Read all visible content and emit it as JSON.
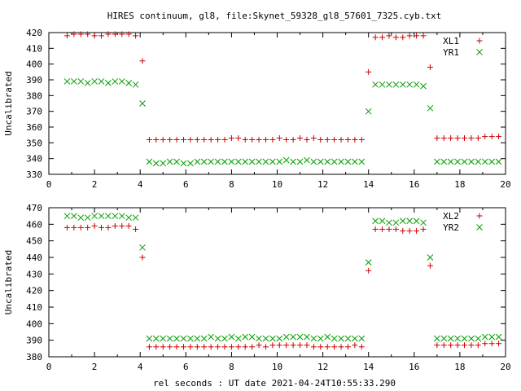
{
  "title": "HIRES continuum, gl8, file:Skynet_59328_gl8_57601_7325.cyb.txt",
  "xlabel": "rel seconds : UT date 2021-04-24T10:55:33.290",
  "colors": {
    "red": "#cc0000",
    "green": "#00a000"
  },
  "chart_data": [
    {
      "type": "scatter",
      "ylabel": "Uncalibrated",
      "xlim": [
        0,
        20
      ],
      "ylim": [
        330,
        420
      ],
      "xticks": [
        "0",
        "2",
        "4",
        "6",
        "8",
        "10",
        "12",
        "14",
        "16",
        "18",
        "20"
      ],
      "yticks": [
        "330",
        "340",
        "350",
        "360",
        "370",
        "380",
        "390",
        "400",
        "410",
        "420"
      ],
      "legend_position": "top-right",
      "series": [
        {
          "name": "XL1",
          "marker": "plus",
          "color": "#cc0000",
          "x": [
            0.8,
            1.1,
            1.4,
            1.7,
            2.0,
            2.3,
            2.6,
            2.9,
            3.2,
            3.5,
            3.8,
            4.1,
            4.4,
            4.7,
            5.0,
            5.3,
            5.6,
            5.9,
            6.2,
            6.5,
            6.8,
            7.1,
            7.4,
            7.7,
            8.0,
            8.3,
            8.6,
            8.9,
            9.2,
            9.5,
            9.8,
            10.1,
            10.4,
            10.7,
            11.0,
            11.3,
            11.6,
            11.9,
            12.2,
            12.5,
            12.8,
            13.1,
            13.4,
            13.7,
            14.0,
            14.3,
            14.6,
            14.9,
            15.2,
            15.5,
            15.8,
            16.1,
            16.4,
            16.7,
            17.0,
            17.3,
            17.6,
            17.9,
            18.2,
            18.5,
            18.8,
            19.1,
            19.4,
            19.7
          ],
          "y": [
            418,
            419,
            419,
            419,
            418,
            418,
            419,
            419,
            419,
            419,
            418,
            402,
            352,
            352,
            352,
            352,
            352,
            352,
            352,
            352,
            352,
            352,
            352,
            352,
            353,
            353,
            352,
            352,
            352,
            352,
            352,
            353,
            352,
            352,
            353,
            352,
            353,
            352,
            352,
            352,
            352,
            352,
            352,
            352,
            395,
            417,
            417,
            418,
            417,
            417,
            418,
            418,
            418,
            398,
            353,
            353,
            353,
            353,
            353,
            353,
            353,
            354,
            354,
            354
          ]
        },
        {
          "name": "YR1",
          "marker": "cross",
          "color": "#00a000",
          "x": [
            0.8,
            1.1,
            1.4,
            1.7,
            2.0,
            2.3,
            2.6,
            2.9,
            3.2,
            3.5,
            3.8,
            4.1,
            4.4,
            4.7,
            5.0,
            5.3,
            5.6,
            5.9,
            6.2,
            6.5,
            6.8,
            7.1,
            7.4,
            7.7,
            8.0,
            8.3,
            8.6,
            8.9,
            9.2,
            9.5,
            9.8,
            10.1,
            10.4,
            10.7,
            11.0,
            11.3,
            11.6,
            11.9,
            12.2,
            12.5,
            12.8,
            13.1,
            13.4,
            13.7,
            14.0,
            14.3,
            14.6,
            14.9,
            15.2,
            15.5,
            15.8,
            16.1,
            16.4,
            16.7,
            17.0,
            17.3,
            17.6,
            17.9,
            18.2,
            18.5,
            18.8,
            19.1,
            19.4,
            19.7
          ],
          "y": [
            389,
            389,
            389,
            388,
            389,
            389,
            388,
            389,
            389,
            388,
            387,
            375,
            338,
            337,
            337,
            338,
            338,
            337,
            337,
            338,
            338,
            338,
            338,
            338,
            338,
            338,
            338,
            338,
            338,
            338,
            338,
            338,
            339,
            338,
            338,
            339,
            338,
            338,
            338,
            338,
            338,
            338,
            338,
            338,
            370,
            387,
            387,
            387,
            387,
            387,
            387,
            387,
            386,
            372,
            338,
            338,
            338,
            338,
            338,
            338,
            338,
            338,
            338,
            338
          ]
        }
      ]
    },
    {
      "type": "scatter",
      "ylabel": "Uncalibrated",
      "xlim": [
        0,
        20
      ],
      "ylim": [
        380,
        470
      ],
      "xticks": [
        "0",
        "2",
        "4",
        "6",
        "8",
        "10",
        "12",
        "14",
        "16",
        "18",
        "20"
      ],
      "yticks": [
        "380",
        "390",
        "400",
        "410",
        "420",
        "430",
        "440",
        "450",
        "460",
        "470"
      ],
      "legend_position": "top-right",
      "series": [
        {
          "name": "XL2",
          "marker": "plus",
          "color": "#cc0000",
          "x": [
            0.8,
            1.1,
            1.4,
            1.7,
            2.0,
            2.3,
            2.6,
            2.9,
            3.2,
            3.5,
            3.8,
            4.1,
            4.4,
            4.7,
            5.0,
            5.3,
            5.6,
            5.9,
            6.2,
            6.5,
            6.8,
            7.1,
            7.4,
            7.7,
            8.0,
            8.3,
            8.6,
            8.9,
            9.2,
            9.5,
            9.8,
            10.1,
            10.4,
            10.7,
            11.0,
            11.3,
            11.6,
            11.9,
            12.2,
            12.5,
            12.8,
            13.1,
            13.4,
            13.7,
            14.0,
            14.3,
            14.6,
            14.9,
            15.2,
            15.5,
            15.8,
            16.1,
            16.4,
            16.7,
            17.0,
            17.3,
            17.6,
            17.9,
            18.2,
            18.5,
            18.8,
            19.1,
            19.4,
            19.7
          ],
          "y": [
            458,
            458,
            458,
            458,
            459,
            458,
            458,
            459,
            459,
            459,
            457,
            440,
            386,
            386,
            386,
            386,
            386,
            386,
            386,
            386,
            386,
            386,
            386,
            386,
            386,
            386,
            386,
            386,
            387,
            386,
            387,
            387,
            387,
            387,
            387,
            387,
            386,
            386,
            386,
            386,
            386,
            386,
            387,
            386,
            432,
            457,
            457,
            457,
            457,
            456,
            456,
            456,
            457,
            435,
            387,
            387,
            387,
            387,
            387,
            387,
            387,
            388,
            388,
            388
          ]
        },
        {
          "name": "YR2",
          "marker": "cross",
          "color": "#00a000",
          "x": [
            0.8,
            1.1,
            1.4,
            1.7,
            2.0,
            2.3,
            2.6,
            2.9,
            3.2,
            3.5,
            3.8,
            4.1,
            4.4,
            4.7,
            5.0,
            5.3,
            5.6,
            5.9,
            6.2,
            6.5,
            6.8,
            7.1,
            7.4,
            7.7,
            8.0,
            8.3,
            8.6,
            8.9,
            9.2,
            9.5,
            9.8,
            10.1,
            10.4,
            10.7,
            11.0,
            11.3,
            11.6,
            11.9,
            12.2,
            12.5,
            12.8,
            13.1,
            13.4,
            13.7,
            14.0,
            14.3,
            14.6,
            14.9,
            15.2,
            15.5,
            15.8,
            16.1,
            16.4,
            16.7,
            17.0,
            17.3,
            17.6,
            17.9,
            18.2,
            18.5,
            18.8,
            19.1,
            19.4,
            19.7
          ],
          "y": [
            465,
            465,
            464,
            464,
            465,
            465,
            465,
            465,
            465,
            464,
            464,
            446,
            391,
            391,
            391,
            391,
            391,
            391,
            391,
            391,
            391,
            392,
            391,
            391,
            392,
            391,
            392,
            392,
            391,
            391,
            391,
            391,
            392,
            392,
            392,
            392,
            391,
            391,
            392,
            391,
            391,
            391,
            391,
            391,
            437,
            462,
            462,
            461,
            461,
            462,
            462,
            462,
            461,
            440,
            391,
            391,
            391,
            391,
            391,
            391,
            391,
            392,
            392,
            392
          ]
        }
      ]
    }
  ]
}
